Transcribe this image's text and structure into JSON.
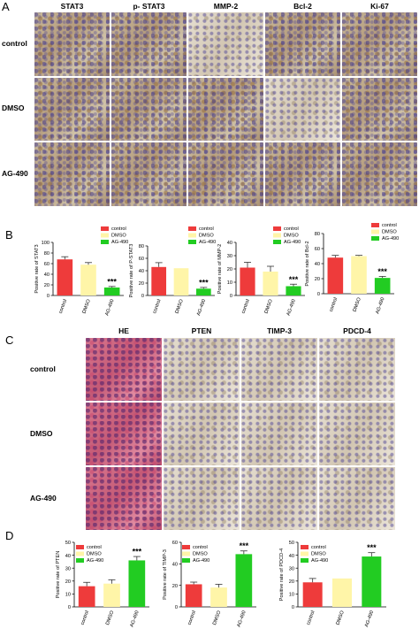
{
  "panelA": {
    "label": "A",
    "columns": [
      "STAT3",
      "p- STAT3",
      "MMP-2",
      "Bcl-2",
      "Ki-67"
    ],
    "rows": [
      "control",
      "DMSO",
      "AG-490"
    ]
  },
  "panelB": {
    "label": "B"
  },
  "panelC": {
    "label": "C",
    "columns": [
      "HE",
      "PTEN",
      "TIMP-3",
      "PDCD-4"
    ],
    "rows": [
      "control",
      "DMSO",
      "AG-490"
    ]
  },
  "panelD": {
    "label": "D"
  },
  "colors": {
    "control": "#ee3b3b",
    "DMSO": "#fff5a8",
    "AG-490": "#22cc22"
  },
  "chart_data": [
    {
      "type": "bar",
      "panel": "B",
      "ylabel": "Positive rate of STAT3",
      "categories": [
        "control",
        "DMSO",
        "AG-490"
      ],
      "values": [
        68,
        58,
        15
      ],
      "errors": [
        5,
        4,
        2
      ],
      "ylim": [
        0,
        100
      ],
      "yticks": [
        0,
        20,
        40,
        60,
        80,
        100
      ],
      "legend": [
        "control",
        "DMSO",
        "AG-490"
      ],
      "annotation": "***"
    },
    {
      "type": "bar",
      "panel": "B",
      "ylabel": "Positive rate of P-STAT3",
      "categories": [
        "control",
        "DMSO",
        "AG-490"
      ],
      "values": [
        46,
        44,
        11
      ],
      "errors": [
        7,
        0,
        2
      ],
      "ylim": [
        0,
        80
      ],
      "yticks": [
        0,
        20,
        40,
        60,
        80
      ],
      "legend": [
        "control",
        "DMSO",
        "AG-490"
      ],
      "annotation": "***"
    },
    {
      "type": "bar",
      "panel": "B",
      "ylabel": "Positive rate of MMP-2",
      "categories": [
        "control",
        "DMSO",
        "AG-490"
      ],
      "values": [
        21,
        18,
        7
      ],
      "errors": [
        4,
        4,
        1.5
      ],
      "ylim": [
        0,
        40
      ],
      "yticks": [
        0,
        10,
        20,
        30,
        40
      ],
      "legend": [
        "control",
        "DMSO",
        "AG-490"
      ],
      "annotation": "***"
    },
    {
      "type": "bar",
      "panel": "B",
      "ylabel": "Positive rate of Bcl-2",
      "categories": [
        "control",
        "DMSO",
        "AG-490"
      ],
      "values": [
        48,
        50,
        21
      ],
      "errors": [
        3,
        1,
        2
      ],
      "ylim": [
        0,
        80
      ],
      "yticks": [
        0,
        20,
        40,
        60,
        80
      ],
      "legend": [
        "control",
        "DMSO",
        "AG-490"
      ],
      "annotation": "***"
    },
    {
      "type": "bar",
      "panel": "D",
      "ylabel": "Positive rate of PTEN",
      "categories": [
        "control",
        "DMSO",
        "AG-490"
      ],
      "values": [
        16,
        18,
        36
      ],
      "errors": [
        3,
        3,
        3
      ],
      "ylim": [
        0,
        50
      ],
      "yticks": [
        0,
        10,
        20,
        30,
        40,
        50
      ],
      "legend": [
        "control",
        "DMSO",
        "AG-490"
      ],
      "annotation": "***"
    },
    {
      "type": "bar",
      "panel": "D",
      "ylabel": "Positive rate of TIMP-3",
      "categories": [
        "control",
        "DMSO",
        "AG-490"
      ],
      "values": [
        21,
        18,
        49
      ],
      "errors": [
        2,
        3,
        3
      ],
      "ylim": [
        0,
        60
      ],
      "yticks": [
        0,
        20,
        40,
        60
      ],
      "legend": [
        "control",
        "DMSO",
        "AG-490"
      ],
      "annotation": "***"
    },
    {
      "type": "bar",
      "panel": "D",
      "ylabel": "Positive rate of PDCD-4",
      "categories": [
        "control",
        "DMSO",
        "AG-490"
      ],
      "values": [
        19,
        22,
        39
      ],
      "errors": [
        3,
        0,
        3
      ],
      "ylim": [
        0,
        50
      ],
      "yticks": [
        0,
        10,
        20,
        30,
        40,
        50
      ],
      "legend": [
        "control",
        "DMSO",
        "AG-490"
      ],
      "annotation": "***"
    }
  ]
}
